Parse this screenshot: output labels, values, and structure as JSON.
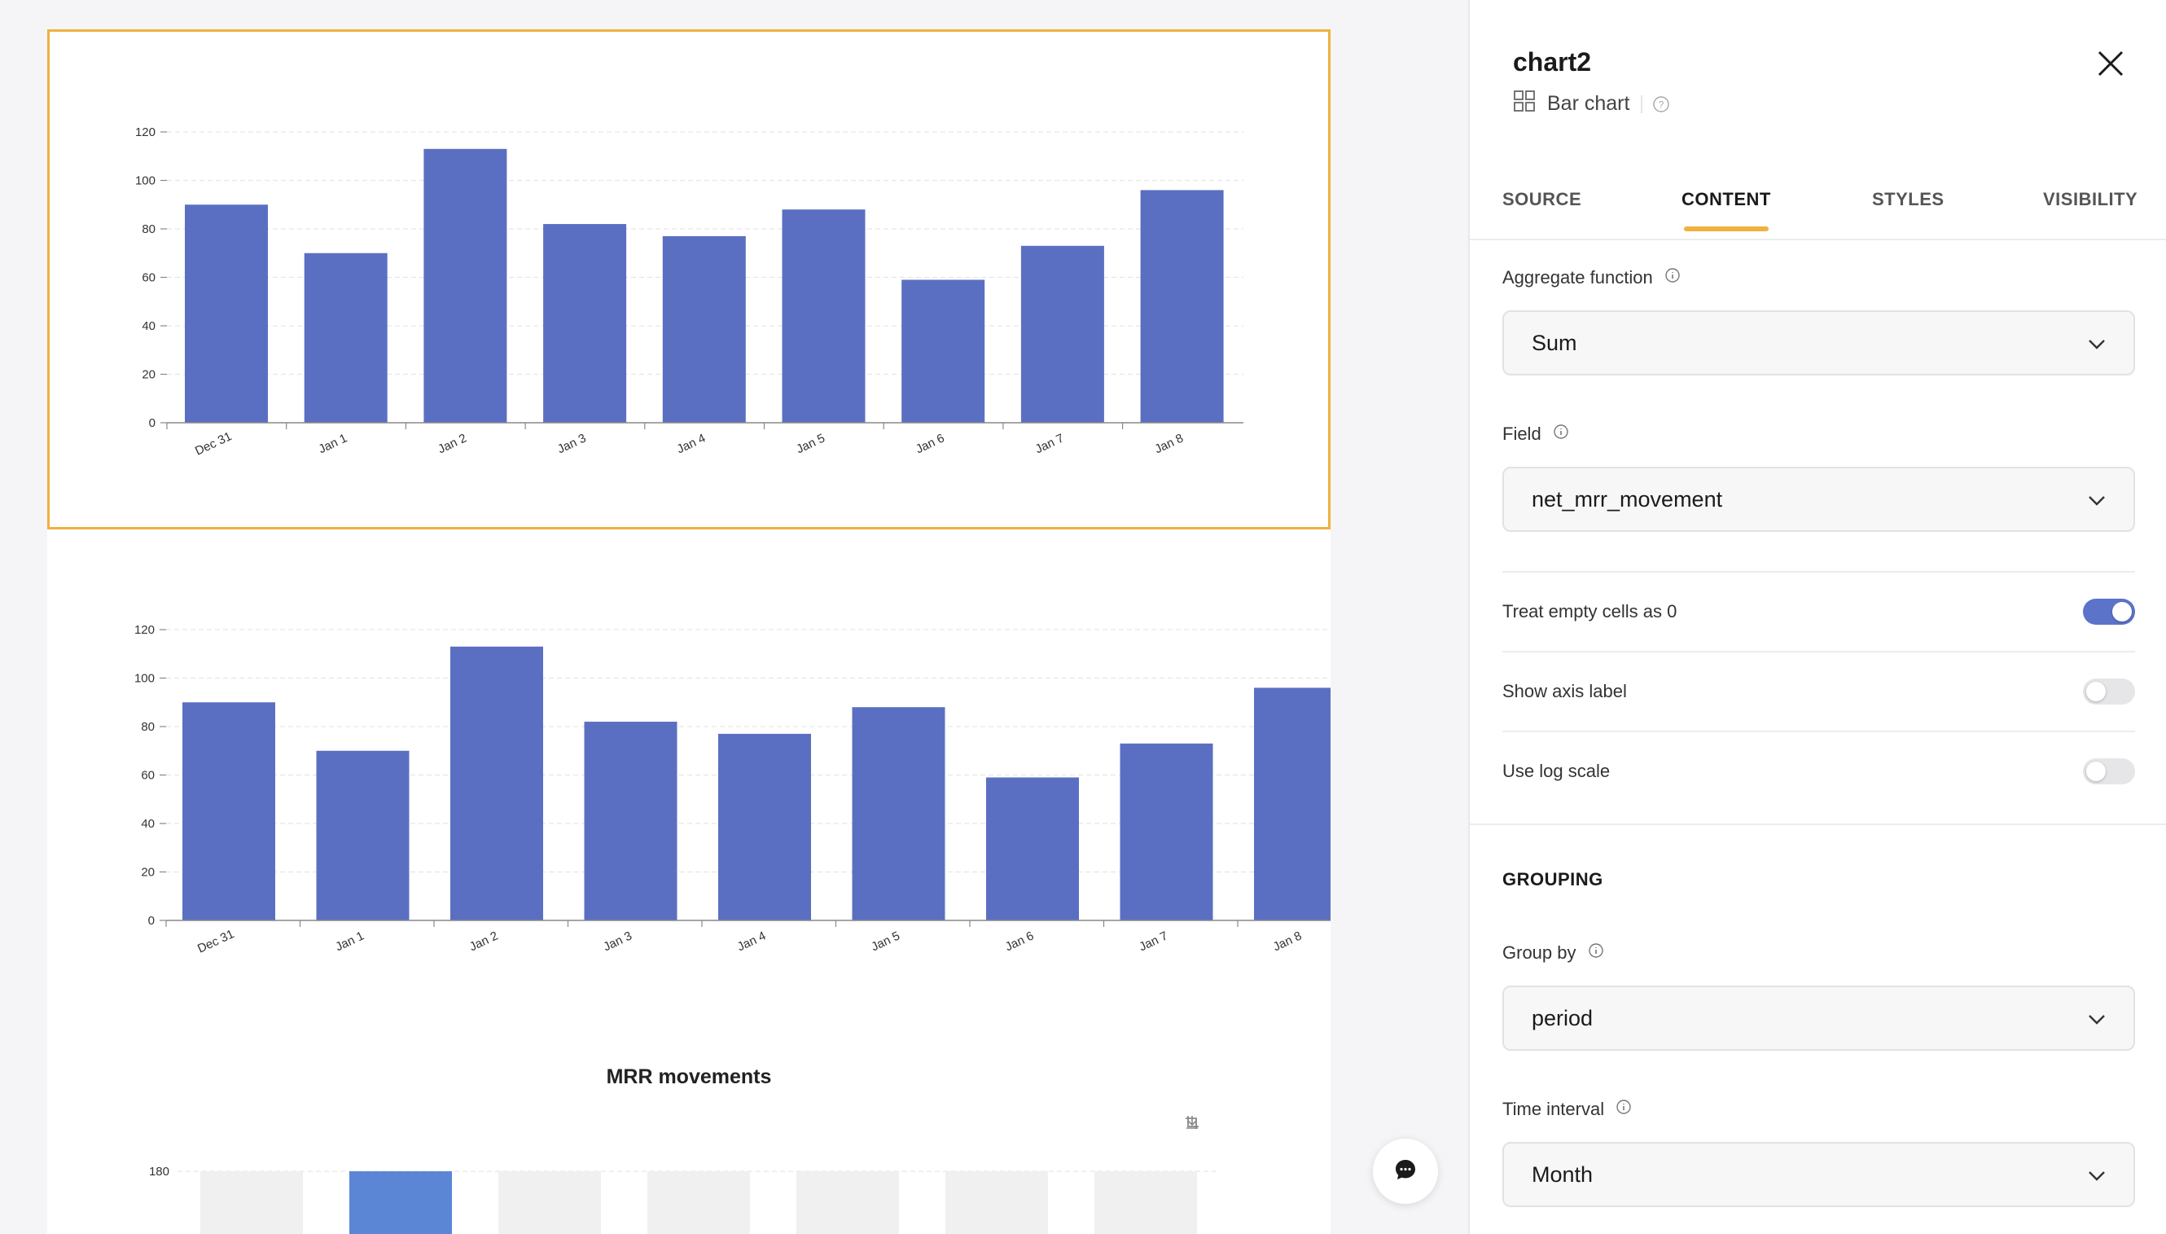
{
  "canvas": {
    "charts": [
      {
        "id": "chart1",
        "chart_data": {
          "type": "bar",
          "categories": [
            "Dec 31",
            "Jan 1",
            "Jan 2",
            "Jan 3",
            "Jan 4",
            "Jan 5",
            "Jan 6",
            "Jan 7",
            "Jan 8"
          ],
          "values": [
            90,
            70,
            113,
            82,
            77,
            88,
            59,
            73,
            96
          ],
          "yticks": [
            "0",
            "20",
            "40",
            "60",
            "80",
            "100",
            "120"
          ],
          "ylim": [
            0,
            120
          ],
          "grid": true,
          "bar_color": "#5b6fc2"
        }
      },
      {
        "id": "chart2",
        "chart_data": {
          "type": "bar",
          "categories": [
            "Dec 31",
            "Jan 1",
            "Jan 2",
            "Jan 3",
            "Jan 4",
            "Jan 5",
            "Jan 6",
            "Jan 7",
            "Jan 8"
          ],
          "values": [
            90,
            70,
            113,
            82,
            77,
            88,
            59,
            73,
            96
          ],
          "yticks": [
            "0",
            "20",
            "40",
            "60",
            "80",
            "100",
            "120"
          ],
          "ylim": [
            0,
            120
          ],
          "grid": true,
          "bar_color": "#5b6fc2"
        }
      },
      {
        "id": "chart3",
        "title": "MRR movements",
        "chart_data": {
          "type": "bar",
          "title": "MRR movements",
          "yticks": [
            "180"
          ],
          "highlight_color": "#5b86d6",
          "placeholder_color": "#f0f0f0"
        }
      }
    ],
    "chat_icon": "chat-bubble-icon"
  },
  "panel": {
    "title": "chart2",
    "type_label": "Bar chart",
    "type_icon": "grid-icon",
    "help_icon": "help-circle-icon",
    "close_icon": "close-icon",
    "tabs": [
      {
        "label": "SOURCE",
        "active": false
      },
      {
        "label": "CONTENT",
        "active": true
      },
      {
        "label": "STYLES",
        "active": false
      },
      {
        "label": "VISIBILITY",
        "active": false
      }
    ],
    "aggregate": {
      "label": "Aggregate function",
      "value": "Sum"
    },
    "field": {
      "label": "Field",
      "value": "net_mrr_movement"
    },
    "toggles": [
      {
        "label": "Treat empty cells as 0",
        "on": true
      },
      {
        "label": "Show axis label",
        "on": false
      },
      {
        "label": "Use log scale",
        "on": false
      }
    ],
    "grouping_title": "GROUPING",
    "group_by": {
      "label": "Group by",
      "value": "period"
    },
    "time_interval": {
      "label": "Time interval",
      "value": "Month"
    },
    "accent_color": "#efb13f",
    "toggle_on_color": "#5b73c9"
  }
}
